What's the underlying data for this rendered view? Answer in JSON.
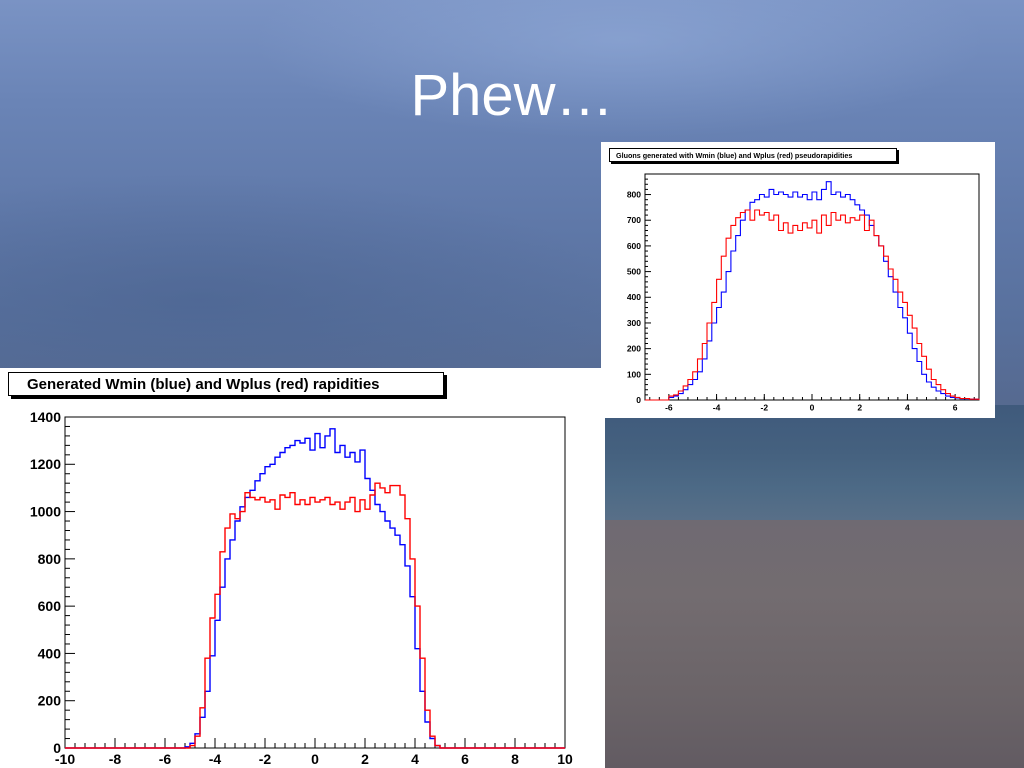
{
  "slide": {
    "title": "Phew…"
  },
  "colors": {
    "blue": "#0000ff",
    "red": "#ff0000"
  },
  "chart_data": [
    {
      "type": "line",
      "title": "Generated Wmin (blue) and Wplus (red) rapidities",
      "xlabel": "",
      "ylabel": "",
      "xlim": [
        -10,
        10
      ],
      "ylim": [
        0,
        1400
      ],
      "x_ticks": [
        -10,
        -8,
        -6,
        -4,
        -2,
        0,
        2,
        4,
        6,
        8,
        10
      ],
      "y_ticks": [
        0,
        200,
        400,
        600,
        800,
        1000,
        1200,
        1400
      ],
      "grid": false,
      "series": [
        {
          "color": "#0000ff",
          "x": [
            -10,
            -5.2,
            -5.0,
            -4.8,
            -4.6,
            -4.4,
            -4.2,
            -4.0,
            -3.8,
            -3.6,
            -3.4,
            -3.2,
            -3.0,
            -2.8,
            -2.6,
            -2.4,
            -2.2,
            -2.0,
            -1.8,
            -1.6,
            -1.4,
            -1.2,
            -1.0,
            -0.8,
            -0.6,
            -0.4,
            -0.2,
            0.0,
            0.2,
            0.4,
            0.6,
            0.8,
            1.0,
            1.2,
            1.4,
            1.6,
            1.8,
            2.0,
            2.2,
            2.4,
            2.6,
            2.8,
            3.0,
            3.2,
            3.4,
            3.6,
            3.8,
            4.0,
            4.2,
            4.4,
            4.6,
            4.8,
            5.0,
            10
          ],
          "y": [
            0,
            5,
            20,
            60,
            130,
            240,
            390,
            540,
            680,
            800,
            880,
            960,
            1020,
            1060,
            1090,
            1130,
            1160,
            1190,
            1200,
            1230,
            1250,
            1270,
            1280,
            1300,
            1290,
            1310,
            1260,
            1330,
            1270,
            1320,
            1350,
            1250,
            1280,
            1230,
            1250,
            1210,
            1260,
            1140,
            1090,
            1030,
            1000,
            960,
            930,
            900,
            860,
            770,
            640,
            420,
            240,
            110,
            40,
            10,
            0,
            0
          ]
        },
        {
          "color": "#ff0000",
          "x": [
            -10,
            -5.0,
            -4.8,
            -4.6,
            -4.4,
            -4.2,
            -4.0,
            -3.8,
            -3.6,
            -3.4,
            -3.2,
            -3.0,
            -2.8,
            -2.6,
            -2.4,
            -2.2,
            -2.0,
            -1.8,
            -1.6,
            -1.4,
            -1.2,
            -1.0,
            -0.8,
            -0.6,
            -0.4,
            -0.2,
            0.0,
            0.2,
            0.4,
            0.6,
            0.8,
            1.0,
            1.2,
            1.4,
            1.6,
            1.8,
            2.0,
            2.2,
            2.4,
            2.6,
            2.8,
            3.0,
            3.2,
            3.4,
            3.6,
            3.8,
            4.0,
            4.2,
            4.4,
            4.6,
            4.8,
            5.0,
            10
          ],
          "y": [
            0,
            10,
            50,
            170,
            380,
            550,
            650,
            830,
            930,
            990,
            970,
            1000,
            1080,
            1060,
            1050,
            1060,
            1040,
            1050,
            1010,
            1070,
            1060,
            1080,
            1030,
            1050,
            1030,
            1060,
            1040,
            1050,
            1060,
            1030,
            1040,
            1010,
            1040,
            1060,
            1000,
            1050,
            1010,
            1070,
            1120,
            1100,
            1080,
            1110,
            1110,
            1070,
            970,
            800,
            600,
            380,
            160,
            50,
            10,
            0,
            0
          ]
        }
      ]
    },
    {
      "type": "line",
      "title": "Gluons generated with Wmin (blue) and Wplus (red) pseudorapidities",
      "xlabel": "",
      "ylabel": "",
      "xlim": [
        -7,
        7
      ],
      "ylim": [
        0,
        880
      ],
      "x_ticks": [
        -6,
        -4,
        -2,
        0,
        2,
        4,
        6
      ],
      "y_ticks": [
        0,
        100,
        200,
        300,
        400,
        500,
        600,
        700,
        800
      ],
      "grid": false,
      "series": [
        {
          "color": "#0000ff",
          "x": [
            -7,
            -6.0,
            -5.8,
            -5.6,
            -5.4,
            -5.2,
            -5.0,
            -4.8,
            -4.6,
            -4.4,
            -4.2,
            -4.0,
            -3.8,
            -3.6,
            -3.4,
            -3.2,
            -3.0,
            -2.8,
            -2.6,
            -2.4,
            -2.2,
            -2.0,
            -1.8,
            -1.6,
            -1.4,
            -1.2,
            -1.0,
            -0.8,
            -0.6,
            -0.4,
            -0.2,
            0.0,
            0.2,
            0.4,
            0.6,
            0.8,
            1.0,
            1.2,
            1.4,
            1.6,
            1.8,
            2.0,
            2.2,
            2.4,
            2.6,
            2.8,
            3.0,
            3.2,
            3.4,
            3.6,
            3.8,
            4.0,
            4.2,
            4.4,
            4.6,
            4.8,
            5.0,
            5.2,
            5.4,
            5.6,
            5.8,
            6.0,
            6.2,
            6.6,
            7
          ],
          "y": [
            0,
            10,
            15,
            25,
            40,
            60,
            80,
            110,
            160,
            230,
            300,
            360,
            420,
            500,
            580,
            640,
            700,
            740,
            770,
            780,
            800,
            790,
            820,
            800,
            810,
            800,
            790,
            810,
            790,
            800,
            780,
            810,
            780,
            820,
            850,
            800,
            810,
            790,
            800,
            780,
            760,
            740,
            720,
            680,
            640,
            600,
            540,
            480,
            420,
            360,
            320,
            260,
            200,
            150,
            100,
            70,
            50,
            35,
            25,
            15,
            10,
            8,
            5,
            3,
            0
          ]
        },
        {
          "color": "#ff0000",
          "x": [
            -7,
            -6.0,
            -5.8,
            -5.6,
            -5.4,
            -5.2,
            -5.0,
            -4.8,
            -4.6,
            -4.4,
            -4.2,
            -4.0,
            -3.8,
            -3.6,
            -3.4,
            -3.2,
            -3.0,
            -2.8,
            -2.6,
            -2.4,
            -2.2,
            -2.0,
            -1.8,
            -1.6,
            -1.4,
            -1.2,
            -1.0,
            -0.8,
            -0.6,
            -0.4,
            -0.2,
            0.0,
            0.2,
            0.4,
            0.6,
            0.8,
            1.0,
            1.2,
            1.4,
            1.6,
            1.8,
            2.0,
            2.2,
            2.4,
            2.6,
            2.8,
            3.0,
            3.2,
            3.4,
            3.6,
            3.8,
            4.0,
            4.2,
            4.4,
            4.6,
            4.8,
            5.0,
            5.2,
            5.4,
            5.6,
            5.8,
            6.0,
            6.2,
            6.6,
            7
          ],
          "y": [
            0,
            15,
            20,
            35,
            55,
            80,
            110,
            160,
            220,
            300,
            380,
            470,
            560,
            630,
            680,
            710,
            730,
            740,
            700,
            740,
            720,
            730,
            700,
            720,
            660,
            690,
            650,
            680,
            660,
            690,
            670,
            700,
            650,
            720,
            680,
            730,
            700,
            720,
            690,
            710,
            700,
            720,
            660,
            700,
            640,
            600,
            560,
            510,
            470,
            420,
            380,
            330,
            280,
            220,
            170,
            120,
            80,
            60,
            40,
            25,
            15,
            10,
            6,
            3,
            0
          ]
        }
      ]
    }
  ]
}
